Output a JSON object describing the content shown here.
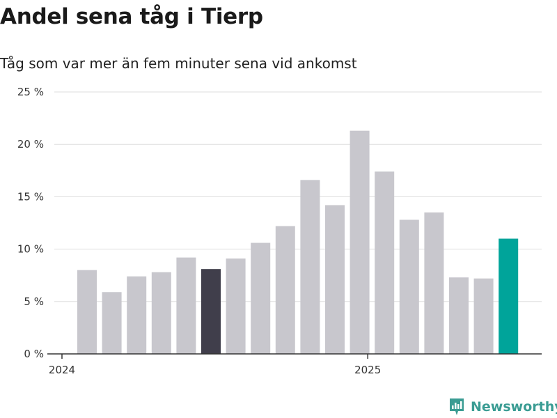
{
  "chart_data": {
    "type": "bar",
    "title": "Andel sena tåg i Tierp",
    "subtitle": "Tåg som var mer än fem minuter sena vid ankomst",
    "values": [
      8.0,
      5.9,
      7.4,
      7.8,
      9.2,
      8.1,
      9.1,
      10.6,
      12.2,
      16.6,
      14.2,
      21.3,
      17.4,
      12.8,
      13.5,
      7.3,
      7.2,
      11.0
    ],
    "highlights": {
      "5": "dark",
      "17": "accent"
    },
    "y_ticks": [
      "0 %",
      "5 %",
      "10 %",
      "15 %",
      "20 %",
      "25 %"
    ],
    "y_tick_values": [
      0,
      5,
      10,
      15,
      20,
      25
    ],
    "x_tick_labels": [
      {
        "label": "2024",
        "index": 0
      },
      {
        "label": "2025",
        "index": 12
      }
    ],
    "ylim": [
      0,
      25
    ],
    "grid": true,
    "colors": {
      "bar": "#c8c7cd",
      "dark": "#403e4b",
      "accent": "#00a49a",
      "grid": "#dedede",
      "axis": "#333333"
    }
  },
  "branding": {
    "name": "Newsworthy",
    "color": "#3a9c93"
  }
}
